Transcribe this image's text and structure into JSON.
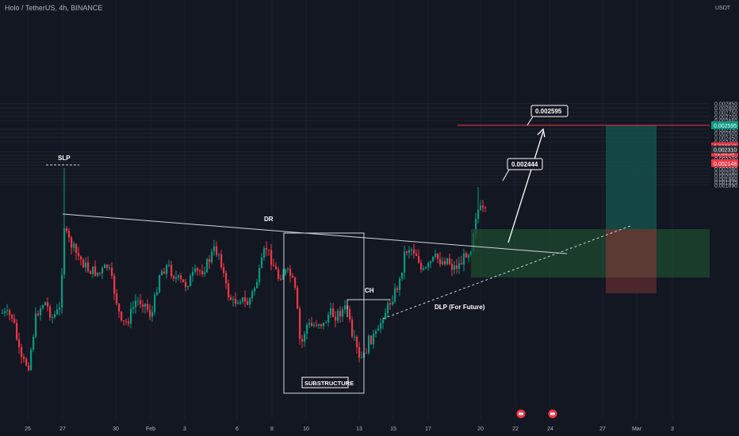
{
  "header": {
    "title": "Holo / TetherUS, 4h, BINANCE",
    "currency": "USDT"
  },
  "chart_data": {
    "type": "candlestick",
    "title": "Holo / TetherUS, 4h, BINANCE",
    "ylim": [
      0.00187,
      0.00295
    ],
    "y_ticks": [
      "0.002850",
      "0.002800",
      "0.002750",
      "0.002700",
      "0.002650",
      "0.002550",
      "0.002500",
      "0.002450",
      "0.002400",
      "0.002280",
      "0.002240",
      "0.002200",
      "0.002160",
      "0.002120",
      "0.002080",
      "0.002040",
      "0.002000",
      "0.001960",
      "0.001925",
      "0.001890"
    ],
    "y_tick_values": [
      0.00285,
      0.0028,
      0.00275,
      0.0027,
      0.00265,
      0.00255,
      0.0025,
      0.00245,
      0.0024,
      0.00228,
      0.00224,
      0.0022,
      0.00216,
      0.00212,
      0.00208,
      0.00204,
      0.002,
      0.00196,
      0.001925,
      0.00189
    ],
    "x_ticks": [
      "25",
      "27",
      "30",
      "Feb",
      "3",
      "6",
      "8",
      "10",
      "13",
      "15",
      "17",
      "20",
      "22",
      "24",
      "27",
      "Mar",
      "3"
    ],
    "price_badges": [
      {
        "label": "0.002596",
        "value": 0.002596,
        "color": "#f23645"
      },
      {
        "label": "0.002595",
        "value": 0.002595,
        "color": "#089981"
      },
      {
        "label": "0.002346",
        "sub": "01:06:39",
        "value": 0.002346,
        "color": "#f23645"
      },
      {
        "label": "0.002310",
        "value": 0.00231,
        "color": "#2a2e39"
      },
      {
        "label": "0.002148",
        "value": 0.002148,
        "color": "#f23645"
      }
    ],
    "annotations": {
      "slp": "SLP",
      "dr": "DR",
      "ch": "CH",
      "dlp": "DLP (For Future)",
      "substructure": "SUBSTRUCTURE",
      "target_1": "0.002444",
      "target_2": "0.002595"
    },
    "colors": {
      "up": "#089981",
      "down": "#f23645",
      "background": "#131722",
      "grid": "#1e222d"
    }
  }
}
